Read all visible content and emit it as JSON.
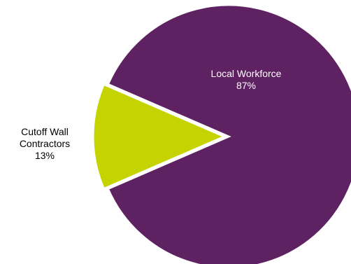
{
  "chart_data": {
    "type": "pie",
    "title": "",
    "slices": [
      {
        "label": "Local Workforce",
        "value": 87,
        "value_label": "87%",
        "color": "#5e2162"
      },
      {
        "label_lines": [
          "Cutoff Wall",
          "Contractors"
        ],
        "label": "Cutoff Wall Contractors",
        "value": 13,
        "value_label": "13%",
        "color": "#c5d400",
        "exploded": true
      }
    ],
    "legend": "none",
    "slice_border_color": "#ffffff"
  }
}
